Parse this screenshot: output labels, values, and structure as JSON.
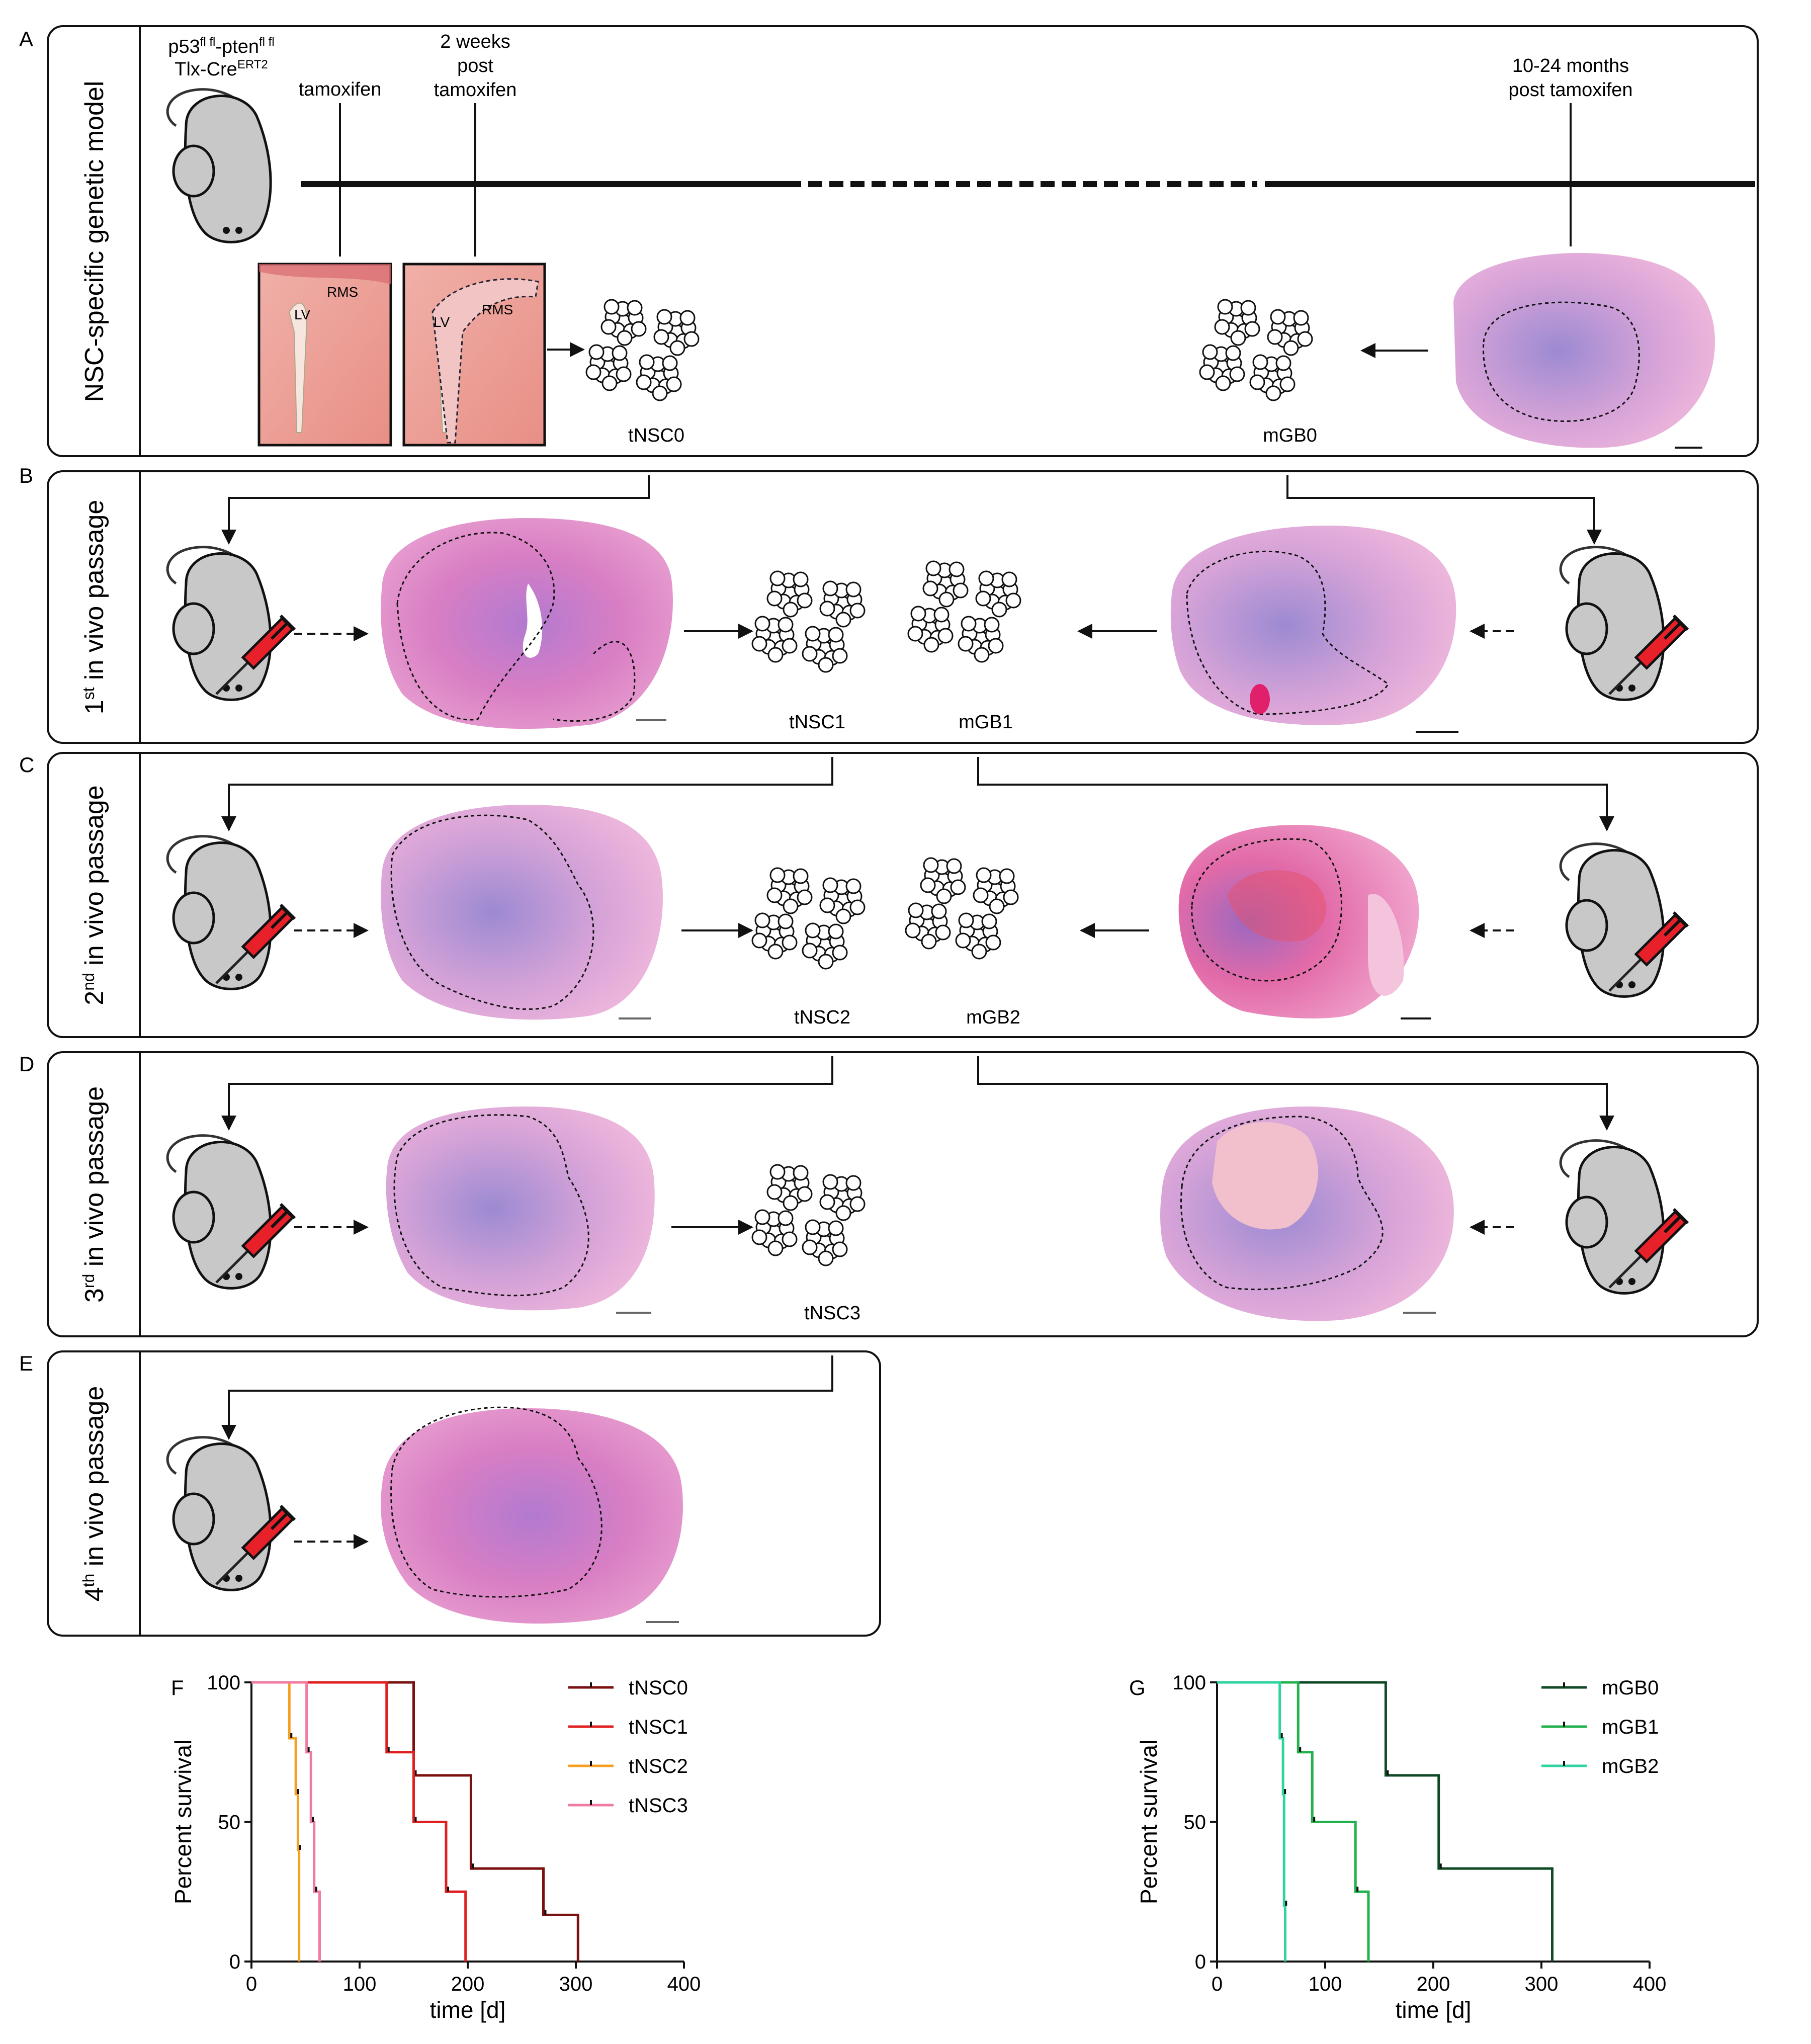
{
  "figure": {
    "panel_letters": [
      "A",
      "B",
      "C",
      "D",
      "E",
      "F",
      "G"
    ],
    "genotype": {
      "line1": "p53",
      "line1_sup1": "fl fl",
      "line1_mid": "-pten",
      "line1_sup2": "fl fl",
      "line2": "Tlx-Cre",
      "line2_sup": "ERT2"
    },
    "timeline": {
      "tamoxifen": "tamoxifen",
      "two_weeks": [
        "2 weeks",
        "post",
        "tamoxifen"
      ],
      "late": [
        "10-24 months",
        "post tamoxifen"
      ]
    },
    "histology_labels": {
      "rms": "RMS",
      "lv": "LV"
    },
    "side_labels": {
      "A": "NSC-specific genetic model",
      "B": {
        "num": "1",
        "sup": "st",
        "rest": " in vivo passage"
      },
      "C": {
        "num": "2",
        "sup": "nd",
        "rest": " in vivo passage"
      },
      "D": {
        "num": "3",
        "sup": "rd",
        "rest": " in vivo passage"
      },
      "E": {
        "num": "4",
        "sup": "th",
        "rest": " in vivo passage"
      }
    },
    "culture_labels": {
      "tNSC0": "tNSC0",
      "mGB0": "mGB0",
      "tNSC1": "tNSC1",
      "mGB1": "mGB1",
      "tNSC2": "tNSC2",
      "mGB2": "mGB2",
      "tNSC3": "tNSC3"
    }
  },
  "colors": {
    "tNSC0": "#7a1010",
    "tNSC1": "#e02020",
    "tNSC2": "#f5a020",
    "tNSC3": "#f07aa0",
    "mGB0": "#0f4a25",
    "mGB1": "#22b14c",
    "mGB2": "#2ed3a0",
    "he_pink": "#e48ac0",
    "he_purple": "#8a6ac0",
    "syringe": "#e8202a"
  },
  "chart_data": [
    {
      "panel": "F",
      "type": "line",
      "ylabel": "Percent survival",
      "xlabel": "time [d]",
      "xlim": [
        0,
        400
      ],
      "ylim": [
        0,
        100
      ],
      "xticks": [
        "0",
        "100",
        "200",
        "300",
        "400"
      ],
      "yticks": [
        "0",
        "50",
        "100"
      ],
      "series": [
        {
          "name": "tNSC0",
          "color": "#7a1010",
          "steps": [
            [
              0,
              100
            ],
            [
              150,
              100
            ],
            [
              150,
              66.7
            ],
            [
              203,
              66.7
            ],
            [
              203,
              33.3
            ],
            [
              270,
              33.3
            ],
            [
              270,
              16.7
            ],
            [
              302,
              16.7
            ],
            [
              302,
              0
            ]
          ]
        },
        {
          "name": "tNSC1",
          "color": "#e02020",
          "steps": [
            [
              0,
              100
            ],
            [
              125,
              100
            ],
            [
              125,
              75
            ],
            [
              150,
              75
            ],
            [
              150,
              50
            ],
            [
              180,
              50
            ],
            [
              180,
              25
            ],
            [
              198,
              25
            ],
            [
              198,
              0
            ]
          ]
        },
        {
          "name": "tNSC2",
          "color": "#f5a020",
          "steps": [
            [
              0,
              100
            ],
            [
              35,
              100
            ],
            [
              35,
              80
            ],
            [
              41,
              80
            ],
            [
              41,
              60
            ],
            [
              43,
              60
            ],
            [
              43,
              40
            ],
            [
              44,
              40
            ],
            [
              44,
              0
            ]
          ]
        },
        {
          "name": "tNSC3",
          "color": "#f07aa0",
          "steps": [
            [
              0,
              100
            ],
            [
              51,
              100
            ],
            [
              51,
              75
            ],
            [
              55,
              75
            ],
            [
              55,
              50
            ],
            [
              58,
              50
            ],
            [
              58,
              25
            ],
            [
              63,
              25
            ],
            [
              63,
              0
            ]
          ]
        }
      ]
    },
    {
      "panel": "G",
      "type": "line",
      "ylabel": "Percent survival",
      "xlabel": "time [d]",
      "xlim": [
        0,
        400
      ],
      "ylim": [
        0,
        100
      ],
      "xticks": [
        "0",
        "100",
        "200",
        "300",
        "400"
      ],
      "yticks": [
        "0",
        "50",
        "100"
      ],
      "series": [
        {
          "name": "mGB0",
          "color": "#0f4a25",
          "steps": [
            [
              0,
              100
            ],
            [
              156,
              100
            ],
            [
              156,
              66.7
            ],
            [
              205,
              66.7
            ],
            [
              205,
              33.3
            ],
            [
              310,
              33.3
            ],
            [
              310,
              0
            ]
          ]
        },
        {
          "name": "mGB1",
          "color": "#22b14c",
          "steps": [
            [
              0,
              100
            ],
            [
              75,
              100
            ],
            [
              75,
              75
            ],
            [
              88,
              75
            ],
            [
              88,
              50
            ],
            [
              128,
              50
            ],
            [
              128,
              25
            ],
            [
              140,
              25
            ],
            [
              140,
              0
            ]
          ]
        },
        {
          "name": "mGB2",
          "color": "#2ed3a0",
          "steps": [
            [
              0,
              100
            ],
            [
              58,
              100
            ],
            [
              58,
              80
            ],
            [
              61,
              80
            ],
            [
              61,
              60
            ],
            [
              62,
              60
            ],
            [
              62,
              20
            ],
            [
              63,
              20
            ],
            [
              63,
              0
            ]
          ]
        }
      ]
    }
  ]
}
